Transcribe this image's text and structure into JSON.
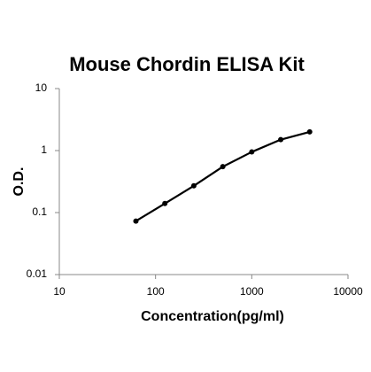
{
  "chart_data": {
    "type": "line",
    "title": "Mouse Chordin ELISA Kit",
    "x_label": "Concentration(pg/ml)",
    "y_label": "O.D.",
    "x": [
      62.5,
      125,
      250,
      500,
      1000,
      2000,
      4000
    ],
    "values": [
      0.073,
      0.14,
      0.27,
      0.55,
      0.95,
      1.5,
      2.0
    ],
    "color": "#000000",
    "markers": true,
    "xscale": "log",
    "yscale": "log",
    "xlim": [
      10,
      10000
    ],
    "xticks": [
      10,
      100,
      1000,
      10000
    ],
    "ylim": [
      0.01,
      10
    ],
    "yticks": [
      0.01,
      0.1,
      1,
      10
    ]
  }
}
